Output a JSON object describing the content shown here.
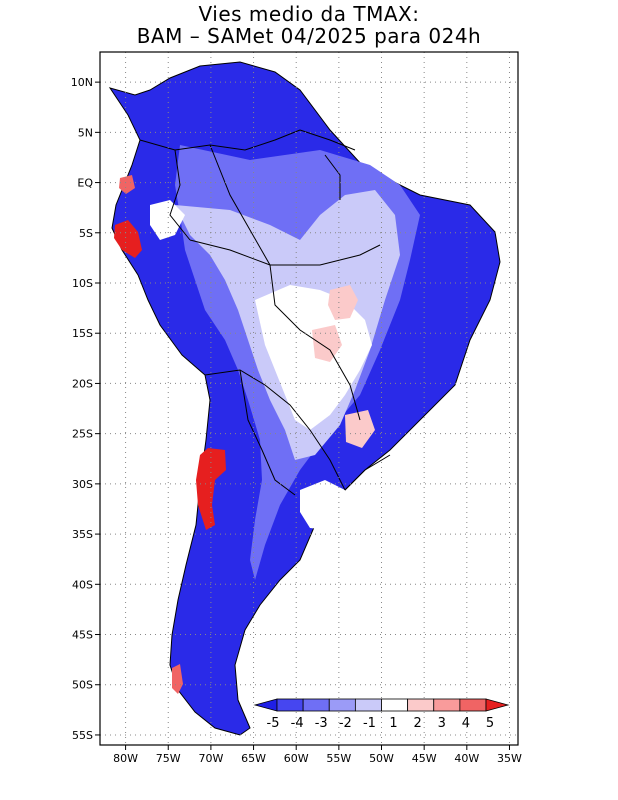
{
  "title": {
    "line1": "Vies medio da TMAX:",
    "line2": "BAM – SAMet 04/2025  para 024h"
  },
  "axes": {
    "lon_labels": [
      "80W",
      "75W",
      "70W",
      "65W",
      "60W",
      "55W",
      "50W",
      "45W",
      "40W",
      "35W"
    ],
    "lat_labels": [
      "10N",
      "5N",
      "EQ",
      "5S",
      "10S",
      "15S",
      "20S",
      "25S",
      "30S",
      "35S",
      "40S",
      "45S",
      "50S",
      "55S"
    ]
  },
  "colorbar": {
    "labels": [
      "-5",
      "-4",
      "-3",
      "-2",
      "-1",
      "1",
      "2",
      "3",
      "4",
      "5"
    ],
    "colors": [
      "#1f1fe6",
      "#4646f0",
      "#6f6ff5",
      "#9b9bf7",
      "#cacaf9",
      "#ffffff",
      "#fbcaca",
      "#f99b9b",
      "#f06464",
      "#e61f1f"
    ]
  },
  "map": {
    "extent_lon": [
      -83,
      -34
    ],
    "extent_lat": [
      -56,
      13
    ],
    "grid": "dotted",
    "variable": "TMAX bias",
    "colors": {
      "strong_cold": "#1f1fe6",
      "mid_cold": "#6f6ff5",
      "light_cold": "#cacaf9",
      "neutral": "#ffffff",
      "light_warm": "#fbcaca",
      "strong_warm": "#e61f1f"
    }
  }
}
